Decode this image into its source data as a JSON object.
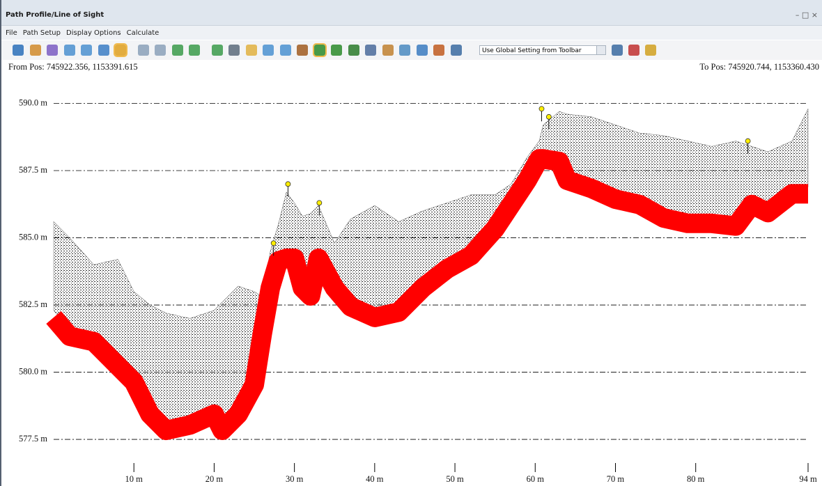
{
  "window": {
    "title": "Path Profile/Line of Sight",
    "menu": [
      "File",
      "Path Setup",
      "Display Options",
      "Calculate"
    ],
    "dropdown": "Use Global Setting from Toolbar",
    "from_pos": "From Pos: 745922.356, 1153391.615",
    "to_pos": "To Pos: 745920.744, 1153360.430"
  },
  "chart_data": {
    "type": "line",
    "x": [
      0,
      2,
      5,
      8,
      10,
      12,
      14,
      17,
      20,
      21,
      23,
      25,
      26,
      27,
      28,
      29,
      30,
      31,
      32,
      33,
      35,
      37,
      40,
      43,
      46,
      49,
      52,
      55,
      57,
      59,
      60.5,
      61,
      63,
      64,
      67,
      70,
      73,
      76,
      79,
      82,
      85,
      87,
      89,
      92,
      94
    ],
    "series": [
      {
        "color": "#ff0000",
        "values": [
          582.4,
          581.7,
          581.5,
          580.6,
          580,
          578.8,
          578.2,
          578.4,
          578.8,
          578.2,
          578.8,
          579.9,
          581.8,
          583.5,
          584.5,
          584.6,
          584.6,
          583.5,
          583.2,
          584.6,
          583.5,
          582.8,
          582.4,
          582.6,
          583.5,
          584.2,
          584.7,
          585.7,
          586.6,
          587.5,
          588.3,
          588.3,
          588.2,
          587.5,
          587.2,
          586.8,
          586.6,
          586.1,
          585.9,
          585.9,
          585.8,
          586.6,
          586.3,
          587,
          587
        ]
      },
      {
        "color": "#222222",
        "values": [
          585.6,
          585,
          584,
          584.2,
          583,
          582.5,
          582.2,
          582,
          582.3,
          582.6,
          583.2,
          583,
          582.8,
          584.5,
          585.5,
          586.7,
          586.3,
          585.8,
          585.9,
          586.2,
          584.8,
          585.7,
          586.2,
          585.6,
          586,
          586.3,
          586.6,
          586.6,
          587,
          588,
          588.6,
          589.2,
          589.7,
          589.6,
          589.5,
          589.2,
          588.9,
          588.8,
          588.6,
          588.4,
          588.6,
          588.4,
          588.2,
          588.6,
          589.8
        ]
      }
    ],
    "points": {
      "color": "#ffee00",
      "x": [
        27.4,
        29.2,
        33.1,
        60.8,
        61.7,
        86.5
      ],
      "values": [
        584.8,
        587,
        586.3,
        589.8,
        589.5,
        588.6
      ]
    },
    "xlim": [
      0,
      94
    ],
    "ylim": [
      576.75,
      591.05
    ],
    "xticks": [
      {
        "value": 10,
        "label": "10 m"
      },
      {
        "value": 20,
        "label": "20 m"
      },
      {
        "value": 30,
        "label": "30 m"
      },
      {
        "value": 40,
        "label": "40 m"
      },
      {
        "value": 50,
        "label": "50 m"
      },
      {
        "value": 60,
        "label": "60 m"
      },
      {
        "value": 70,
        "label": "70 m"
      },
      {
        "value": 80,
        "label": "80 m"
      },
      {
        "value": 94,
        "label": "94 m"
      }
    ],
    "yticks": [
      {
        "value": 577.5,
        "label": "577.5 m"
      },
      {
        "value": 580,
        "label": "580.0 m"
      },
      {
        "value": 582.5,
        "label": "582.5 m"
      },
      {
        "value": 585,
        "label": "585.0 m"
      },
      {
        "value": 587.5,
        "label": "587.5 m"
      },
      {
        "value": 590,
        "label": "590.0 m"
      }
    ],
    "grid": true
  }
}
